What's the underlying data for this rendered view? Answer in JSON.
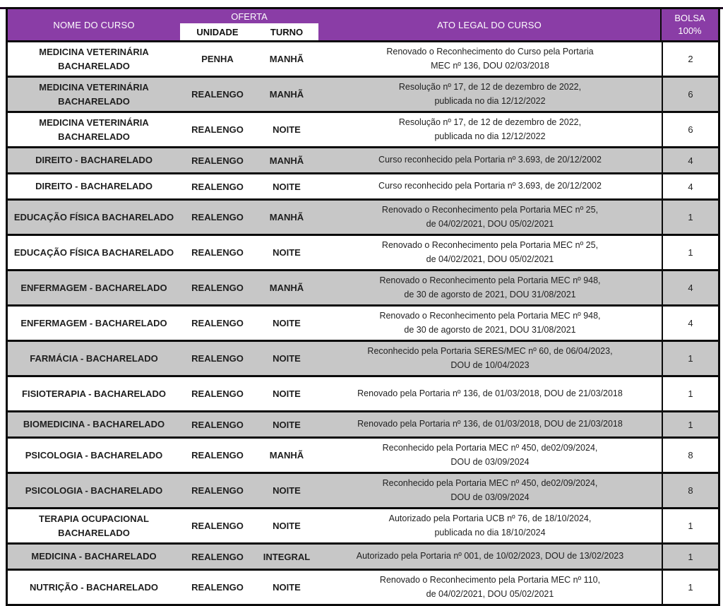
{
  "colors": {
    "header_purple": "#8a3da6",
    "row_gray": "#c7c7c7",
    "row_white": "#ffffff",
    "border_black": "#0b0b0b"
  },
  "table": {
    "header": {
      "nome": "NOME DO CURSO",
      "oferta": "OFERTA",
      "unidade": "UNIDADE",
      "turno": "TURNO",
      "ato_legal": "ATO LEGAL DO CURSO",
      "bolsa": [
        "BOLSA",
        "100%"
      ]
    },
    "rows": [
      {
        "name": [
          "MEDICINA VETERINÁRIA",
          "BACHARELADO"
        ],
        "unidade": "PENHA",
        "turno": "MANHÃ",
        "ato": [
          "Renovado o Reconhecimento do Curso pela Portaria",
          "MEC nº 136, DOU 02/03/2018"
        ],
        "bolsa": "2"
      },
      {
        "name": [
          "MEDICINA VETERINÁRIA",
          "BACHARELADO"
        ],
        "unidade": "REALENGO",
        "turno": "MANHÃ",
        "ato": [
          "Resolução nº 17, de 12 de dezembro de 2022,",
          "publicada no dia 12/12/2022"
        ],
        "bolsa": "6"
      },
      {
        "name": [
          "MEDICINA VETERINÁRIA",
          "BACHARELADO"
        ],
        "unidade": "REALENGO",
        "turno": "NOITE",
        "ato": [
          "Resolução nº 17, de 12 de dezembro de 2022,",
          "publicada no dia 12/12/2022"
        ],
        "bolsa": "6"
      },
      {
        "name": [
          "DIREITO - BACHARELADO"
        ],
        "unidade": "REALENGO",
        "turno": "MANHÃ",
        "ato": [
          "Curso reconhecido pela Portaria nº 3.693, de 20/12/2002"
        ],
        "bolsa": "4"
      },
      {
        "name": [
          "DIREITO - BACHARELADO"
        ],
        "unidade": "REALENGO",
        "turno": "NOITE",
        "ato": [
          "Curso reconhecido pela Portaria nº 3.693, de 20/12/2002"
        ],
        "bolsa": "4"
      },
      {
        "name": [
          "EDUCAÇÃO FÍSICA BACHARELADO"
        ],
        "unidade": "REALENGO",
        "turno": "MANHÃ",
        "ato": [
          "Renovado o Reconhecimento pela Portaria MEC nº 25,",
          "de 04/02/2021, DOU 05/02/2021"
        ],
        "bolsa": "1"
      },
      {
        "name": [
          "EDUCAÇÃO FÍSICA BACHARELADO"
        ],
        "unidade": "REALENGO",
        "turno": "NOITE",
        "ato": [
          "Renovado o Reconhecimento pela Portaria MEC nº 25,",
          "de 04/02/2021, DOU 05/02/2021"
        ],
        "bolsa": "1"
      },
      {
        "name": [
          "ENFERMAGEM - BACHARELADO"
        ],
        "unidade": "REALENGO",
        "turno": "MANHÃ",
        "ato": [
          "Renovado o Reconhecimento pela Portaria MEC nº 948,",
          "de 30 de agorsto de 2021, DOU 31/08/2021"
        ],
        "bolsa": "4"
      },
      {
        "name": [
          "ENFERMAGEM - BACHARELADO"
        ],
        "unidade": "REALENGO",
        "turno": "NOITE",
        "ato": [
          "Renovado o Reconhecimento pela Portaria MEC nº 948,",
          "de 30 de agorsto de 2021, DOU 31/08/2021"
        ],
        "bolsa": "4"
      },
      {
        "name": [
          "FARMÁCIA - BACHARELADO"
        ],
        "unidade": "REALENGO",
        "turno": "NOITE",
        "ato": [
          "Reconhecido pela Portaria SERES/MEC nº 60, de 06/04/2023,",
          "DOU de 10/04/2023"
        ],
        "bolsa": "1"
      },
      {
        "name": [
          "FISIOTERAPIA - BACHARELADO"
        ],
        "unidade": "REALENGO",
        "turno": "NOITE",
        "ato": [
          "Renovado pela Portaria nº 136, de 01/03/2018, DOU de 21/03/2018"
        ],
        "bolsa": "1"
      },
      {
        "name": [
          "BIOMEDICINA - BACHARELADO"
        ],
        "unidade": "REALENGO",
        "turno": "NOITE",
        "ato": [
          "Renovado pela Portaria nº 136, de 01/03/2018, DOU de 21/03/2018"
        ],
        "bolsa": "1"
      },
      {
        "name": [
          "PSICOLOGIA - BACHARELADO"
        ],
        "unidade": "REALENGO",
        "turno": "MANHÃ",
        "ato": [
          "Reconhecido pela Portaria MEC nº 450, de02/09/2024,",
          "DOU de 03/09/2024"
        ],
        "bolsa": "8"
      },
      {
        "name": [
          "PSICOLOGIA - BACHARELADO"
        ],
        "unidade": "REALENGO",
        "turno": "NOITE",
        "ato": [
          "Reconhecido pela Portaria MEC nº 450, de02/09/2024,",
          "DOU de 03/09/2024"
        ],
        "bolsa": "8"
      },
      {
        "name": [
          "TERAPIA OCUPACIONAL",
          "BACHARELADO"
        ],
        "unidade": "REALENGO",
        "turno": "NOITE",
        "ato": [
          "Autorizado pela Portaria UCB nº 76, de 18/10/2024,",
          "publicada no dia 18/10/2024"
        ],
        "bolsa": "1"
      },
      {
        "name": [
          "MEDICINA - BACHARELADO"
        ],
        "unidade": "REALENGO",
        "turno": "INTEGRAL",
        "ato": [
          "Autorizado pela Portaria nº 001, de 10/02/2023, DOU de 13/02/2023"
        ],
        "bolsa": "1"
      },
      {
        "name": [
          "NUTRIÇÃO - BACHARELADO"
        ],
        "unidade": "REALENGO",
        "turno": "NOITE",
        "ato": [
          "Renovado o Reconhecimento pela Portaria MEC nº 110,",
          "de 04/02/2021, DOU 05/02/2021"
        ],
        "bolsa": "1"
      }
    ]
  }
}
